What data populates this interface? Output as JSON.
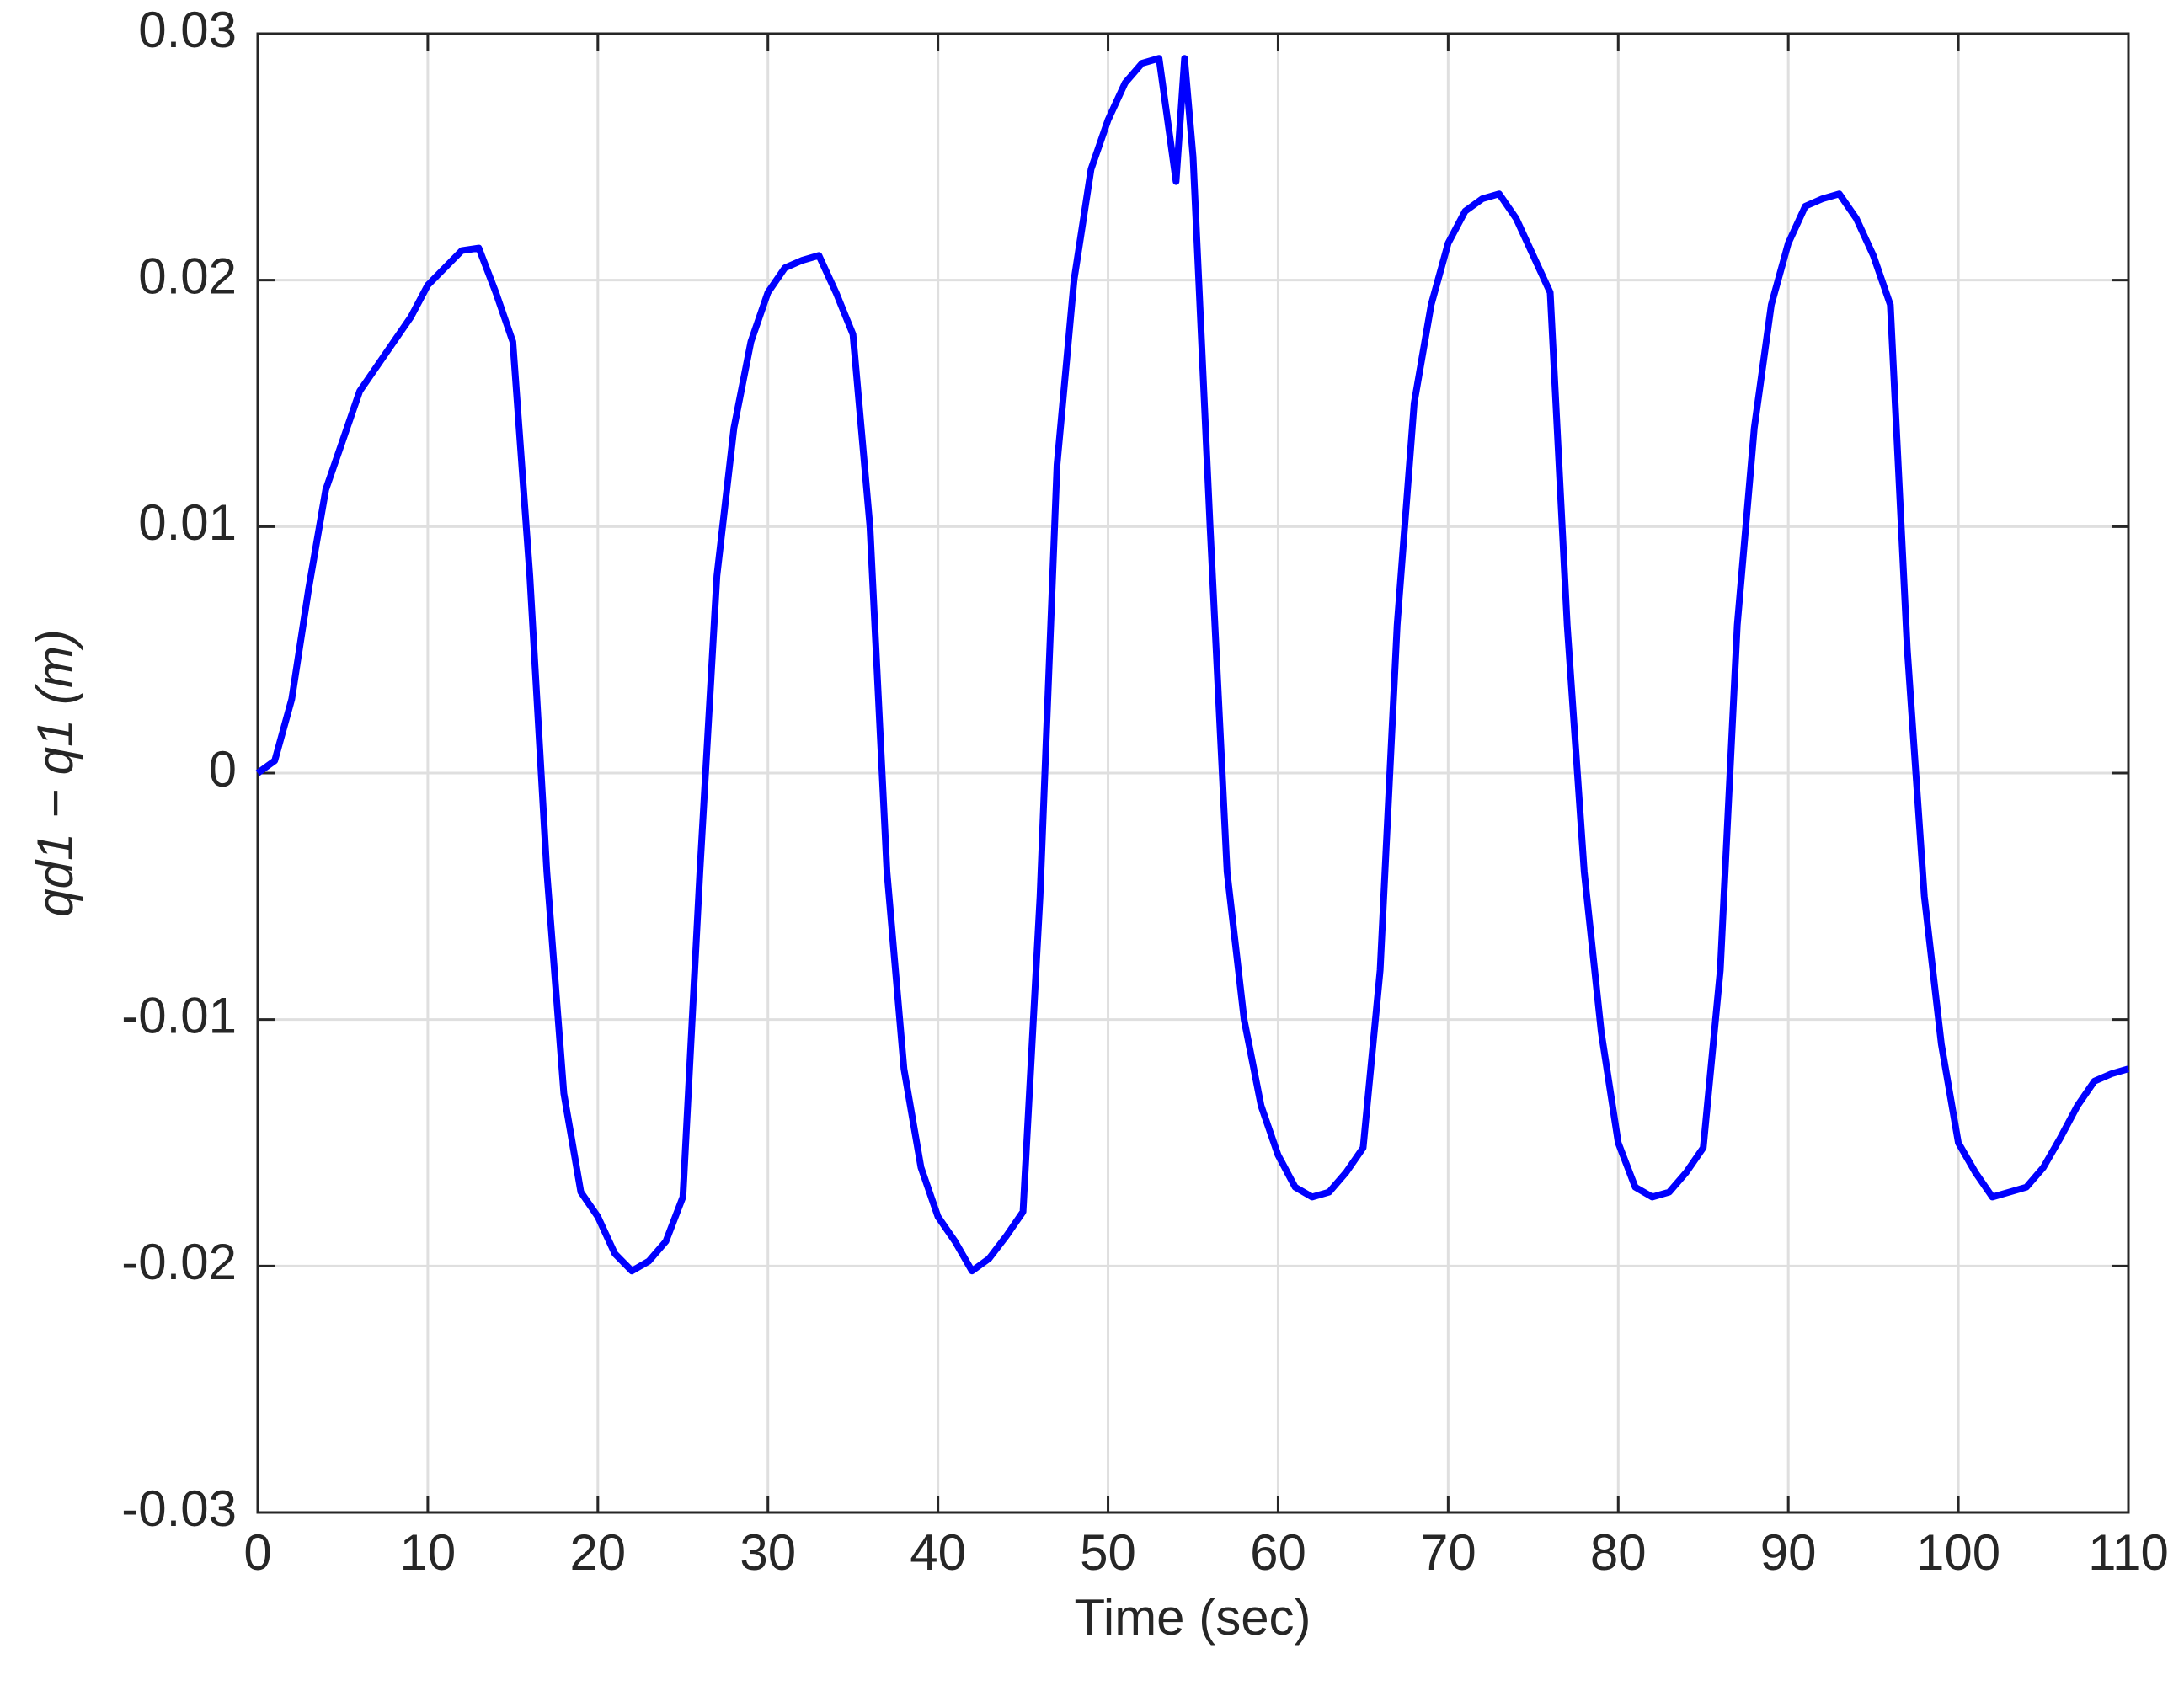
{
  "chart_data": {
    "type": "line",
    "x_label": "Time (sec)",
    "y_label": "qd1 − q1 (m)",
    "x": [
      0,
      1,
      2,
      3,
      4,
      5,
      6,
      7,
      8,
      9,
      10,
      11,
      12,
      13,
      14,
      15,
      16,
      17,
      18,
      19,
      20,
      21,
      22,
      23,
      24,
      25,
      26,
      27,
      28,
      29,
      30,
      31,
      32,
      33,
      34,
      35,
      36,
      37,
      38,
      39,
      40,
      41,
      42,
      43,
      44,
      45,
      46,
      47,
      48,
      49,
      50,
      51,
      52,
      53,
      54,
      54.5,
      55,
      56,
      57,
      58,
      59,
      60,
      61,
      62,
      63,
      64,
      65,
      66,
      67,
      68,
      69,
      70,
      71,
      72,
      73,
      74,
      75,
      76,
      77,
      78,
      79,
      80,
      81,
      82,
      83,
      84,
      85,
      86,
      87,
      88,
      89,
      90,
      91,
      92,
      93,
      94,
      95,
      96,
      97,
      98,
      99,
      100,
      101,
      102,
      103,
      104,
      105,
      106,
      107,
      108,
      109,
      110
    ],
    "series": [
      {
        "color": "#0000ff",
        "values": [
          0,
          0.0005,
          0.003,
          0.0075,
          0.0115,
          0.0135,
          0.0155,
          0.0165,
          0.0175,
          0.0185,
          0.0198,
          0.0205,
          0.0212,
          0.0213,
          0.0195,
          0.0175,
          0.008,
          -0.004,
          -0.013,
          -0.017,
          -0.018,
          -0.0195,
          -0.0202,
          -0.0198,
          -0.019,
          -0.0172,
          -0.004,
          0.008,
          0.014,
          0.0175,
          0.0195,
          0.0205,
          0.0208,
          0.021,
          0.0195,
          0.0178,
          0.01,
          -0.004,
          -0.012,
          -0.016,
          -0.018,
          -0.019,
          -0.0202,
          -0.0197,
          -0.0188,
          -0.0178,
          -0.005,
          0.0125,
          0.02,
          0.0245,
          0.0265,
          0.028,
          0.0288,
          0.029,
          0.024,
          0.029,
          0.025,
          0.01,
          -0.004,
          -0.01,
          -0.0135,
          -0.0155,
          -0.0168,
          -0.0172,
          -0.017,
          -0.0162,
          -0.0152,
          -0.008,
          0.006,
          0.015,
          0.019,
          0.0215,
          0.0228,
          0.0233,
          0.0235,
          0.0225,
          0.021,
          0.0195,
          0.006,
          -0.004,
          -0.0105,
          -0.015,
          -0.0168,
          -0.0172,
          -0.017,
          -0.0162,
          -0.0152,
          -0.008,
          0.006,
          0.014,
          0.019,
          0.0215,
          0.023,
          0.0233,
          0.0235,
          0.0225,
          0.021,
          0.019,
          0.005,
          -0.005,
          -0.011,
          -0.015,
          -0.0162,
          -0.0172,
          -0.017,
          -0.0168,
          -0.016,
          -0.0148,
          -0.0135,
          -0.0125,
          -0.0122,
          -0.012
        ]
      }
    ],
    "xlim": [
      0,
      110
    ],
    "xticks": [
      0,
      10,
      20,
      30,
      40,
      50,
      60,
      70,
      80,
      90,
      100,
      110
    ],
    "ylim": [
      -0.03,
      0.03
    ],
    "yticks": [
      -0.03,
      -0.02,
      -0.01,
      0,
      0.01,
      0.02,
      0.03
    ],
    "grid": true
  }
}
